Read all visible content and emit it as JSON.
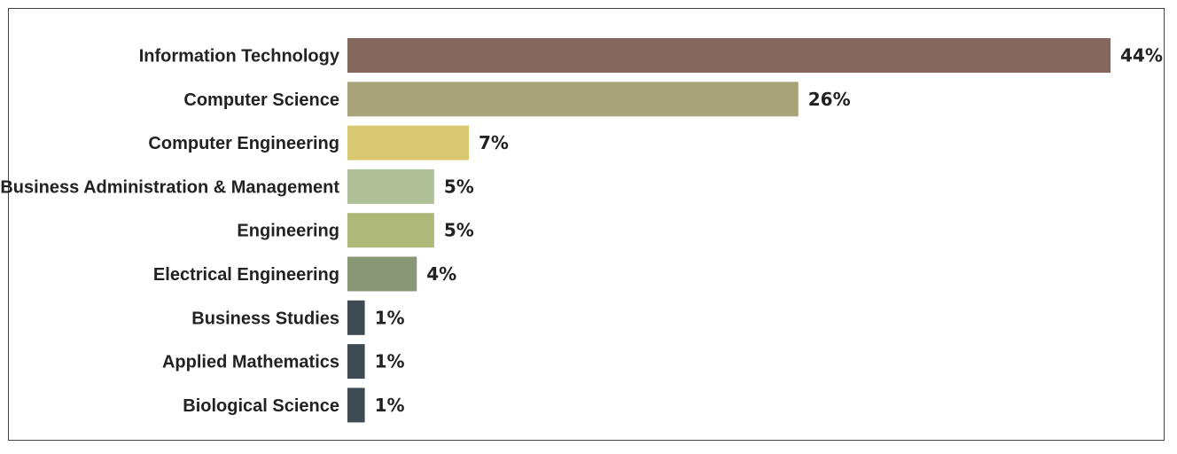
{
  "chart_data": {
    "type": "bar",
    "orientation": "horizontal",
    "categories": [
      "Information Technology",
      "Computer Science",
      "Computer Engineering",
      "Business Administration & Management",
      "Engineering",
      "Electrical Engineering",
      "Business Studies",
      "Applied Mathematics",
      "Biological Science"
    ],
    "values": [
      44,
      26,
      7,
      5,
      5,
      4,
      1,
      1,
      1
    ],
    "value_labels": [
      "44%",
      "26%",
      "7%",
      "5%",
      "5%",
      "4%",
      "1%",
      "1%",
      "1%"
    ],
    "colors": [
      "#85675d",
      "#a8a477",
      "#d8c871",
      "#afbf96",
      "#aeb979",
      "#889775",
      "#3d4a52",
      "#3d4a52",
      "#3d4a52"
    ],
    "xlim": [
      0,
      44
    ],
    "grid": false,
    "legend": "none"
  }
}
